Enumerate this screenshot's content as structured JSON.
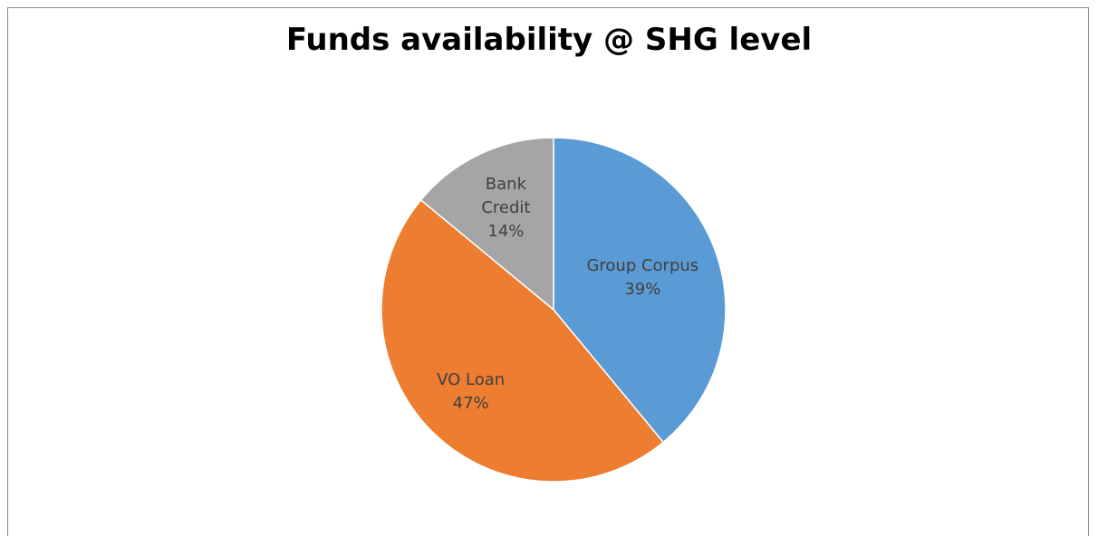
{
  "chart_data": {
    "type": "pie",
    "title": "Funds availability @ SHG level",
    "categories": [
      "Group Corpus",
      "VO Loan",
      "Bank Credit"
    ],
    "values": [
      39,
      47,
      14
    ],
    "value_labels": [
      "39%",
      "47%",
      "14%"
    ],
    "colors": [
      "#5b9bd5",
      "#ed7d31",
      "#a5a5a5"
    ]
  }
}
